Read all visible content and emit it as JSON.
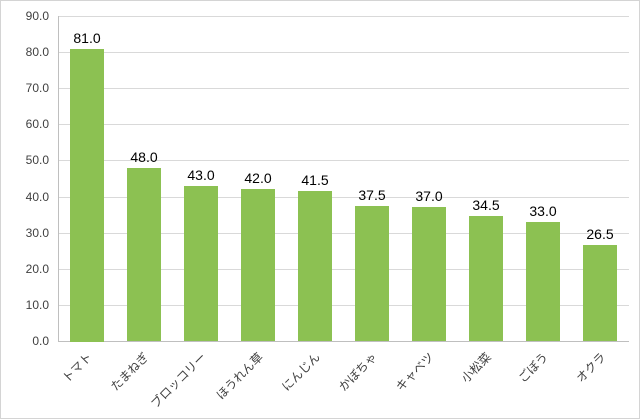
{
  "chart_data": {
    "type": "bar",
    "title": "",
    "xlabel": "",
    "ylabel": "",
    "categories": [
      "トマト",
      "たまねぎ",
      "ブロッコリー",
      "ほうれん草",
      "にんじん",
      "かぼちゃ",
      "キャベツ",
      "小松菜",
      "ごぼう",
      "オクラ"
    ],
    "values": [
      81.0,
      48.0,
      43.0,
      42.0,
      41.5,
      37.5,
      37.0,
      34.5,
      33.0,
      26.5
    ],
    "value_labels": [
      "81.0",
      "48.0",
      "43.0",
      "42.0",
      "41.5",
      "37.5",
      "37.0",
      "34.5",
      "33.0",
      "26.5"
    ],
    "ylim": [
      0,
      90
    ],
    "ytick_step": 10,
    "ytick_labels": [
      "0.0",
      "10.0",
      "20.0",
      "30.0",
      "40.0",
      "50.0",
      "60.0",
      "70.0",
      "80.0",
      "90.0"
    ],
    "grid": true,
    "legend": false,
    "bar_color": "#8cc152",
    "grid_color": "#d9d9d9",
    "axis_color": "#bfbfbf",
    "tick_label_color": "#3f3f3f",
    "value_label_color": "#000000",
    "background_color": "#ffffff"
  }
}
